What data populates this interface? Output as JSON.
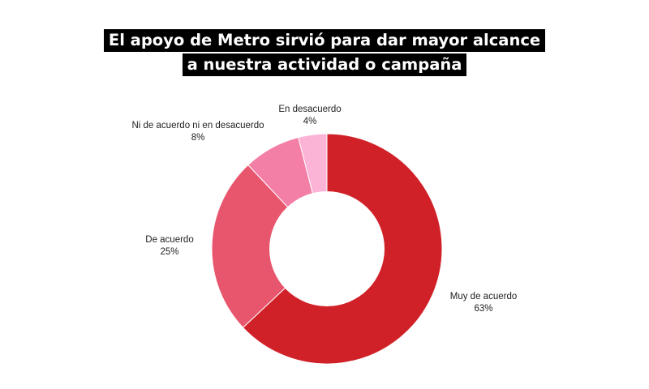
{
  "title_lines": [
    "El apoyo de Metro sirvió para dar mayor alcance",
    "a nuestra actividad o campaña"
  ],
  "chart_data": {
    "type": "pie",
    "donut": true,
    "title": "El apoyo de Metro sirvió para dar mayor alcance a nuestra actividad o campaña",
    "categories": [
      "Muy de acuerdo",
      "De acuerdo",
      "Ni de acuerdo ni en desacuerdo",
      "En desacuerdo"
    ],
    "values": [
      63,
      25,
      8,
      4
    ],
    "value_labels": [
      "63%",
      "25%",
      "8%",
      "4%"
    ],
    "colors": [
      "#d12128",
      "#e8566e",
      "#f47fa6",
      "#fbb3d6"
    ],
    "start": "12 o'clock",
    "direction": "clockwise",
    "legend": "none"
  }
}
